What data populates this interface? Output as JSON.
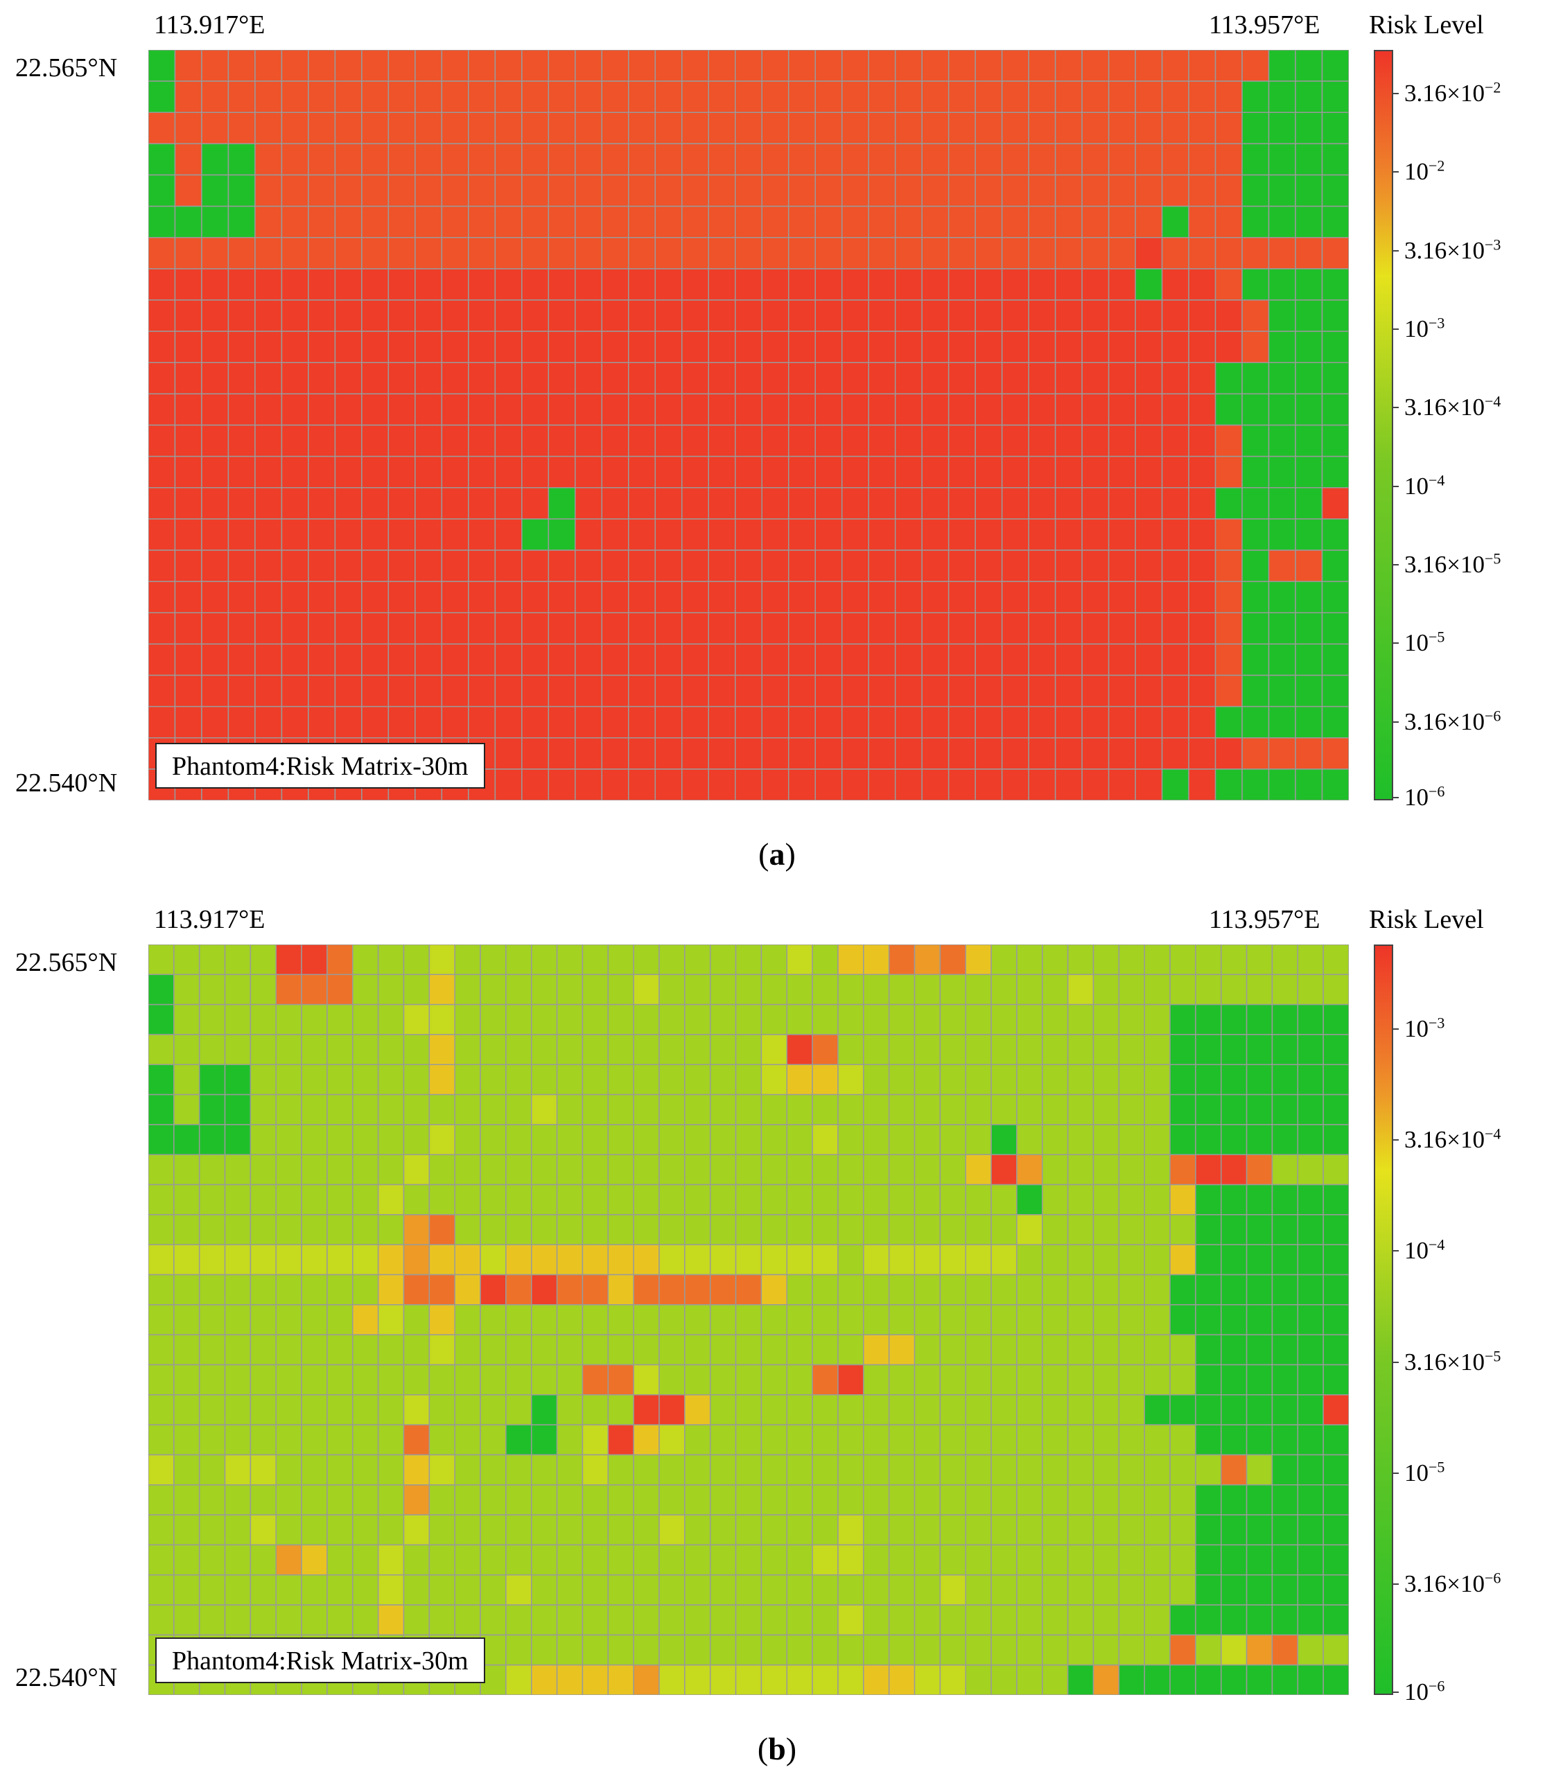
{
  "chart_data": [
    {
      "type": "heatmap",
      "panel": "a",
      "caption": "(a)",
      "caption_letter": "a",
      "title": "Phantom4:Risk Matrix-30m",
      "x_range_labels": [
        "113.917°E",
        "113.957°E"
      ],
      "y_range_labels": [
        "22.565°N",
        "22.540°N"
      ],
      "colorbar_title": "Risk Level",
      "color_scale": "log",
      "value_range": [
        1e-06,
        0.06
      ],
      "colorbar_ticks": [
        {
          "value": 0.0316,
          "mantissa": "3.16×10",
          "exponent": "−2"
        },
        {
          "value": 0.01,
          "mantissa": "10",
          "exponent": "−2"
        },
        {
          "value": 0.00316,
          "mantissa": "3.16×10",
          "exponent": "−3"
        },
        {
          "value": 0.001,
          "mantissa": "10",
          "exponent": "−3"
        },
        {
          "value": 0.000316,
          "mantissa": "3.16×10",
          "exponent": "−4"
        },
        {
          "value": 0.0001,
          "mantissa": "10",
          "exponent": "−4"
        },
        {
          "value": 3.16e-05,
          "mantissa": "3.16×10",
          "exponent": "−5"
        },
        {
          "value": 1e-05,
          "mantissa": "10",
          "exponent": "−5"
        },
        {
          "value": 3.16e-06,
          "mantissa": "3.16×10",
          "exponent": "−6"
        },
        {
          "value": 1e-06,
          "mantissa": "10",
          "exponent": "−6"
        }
      ],
      "colors": {
        "low": "#1fbf2a",
        "mid_low": "#7ac824",
        "mid": "#e6e21c",
        "mid_high": "#ee8a2a",
        "high": "#ee3528",
        "grid": "#9a9a9a"
      },
      "value_legend": {
        "A": 0.05,
        "B": 0.03,
        "C": 0.012,
        "D": 1e-06
      },
      "rows": [
        "DBBBBBBBBBBBBBBBBBBBBBBBBBBBBBBBBBBBBBBBBBDDD",
        "DBBBBBBBBBBBBBBBBBBBBBBBBBBBBBBBBBBBBBBBBDDDD",
        "BBBBBBBBBBBBBBBBBBBBBBBBBBBBBBBBBBBBBBBBBDDDD",
        "DBDDBBBBBBBBBBBBBBBBBBBBBBBBBBBBBBBBBBBBBDDDD",
        "DBDDBBBBBBBBBBBBBBBBBBBBBBBBBBBBBBBBBBBBBDDDD",
        "DDDDBBBBBBBBBBBBBBBBBBBBBBBBBBBBBBBBBBDBBDDDD",
        "BBBBBBBBBBBBBBBBBBBBBBBBBBBBBBBBBBBBBABBBBBBB",
        "AAAAAAAAAAAAAAAAAAAAAAAAAAAAAAAAAAAAADAABDDDD",
        "AAAAAAAAAAAAAAAAAAAAAAAAAAAAAAAAAAAAAAAAABDDD",
        "AAAAAAAAAAAAAAAAAAAAAAAAAAAAAAAAAAAAAAAAABDDD",
        "AAAAAAAAAAAAAAAAAAAAAAAAAAAAAAAAAAAAAAAADDDDD",
        "AAAAAAAAAAAAAAAAAAAAAAAAAAAAAAAAAAAAAAAADDDDD",
        "AAAAAAAAAAAAAAAAAAAAAAAAAAAAAAAAAAAAAAAABDDDD",
        "AAAAAAAAAAAAAAAAAAAAAAAAAAAAAAAAAAAAAAAABDDDD",
        "AAAAAAAAAAAAAAADAAAAAAAAAAAAAAAAAAAAAAAADDDDA",
        "AAAAAAAAAAAAAADDAAAAAAAAAAAAAAAAAAAAAAAABDDDD",
        "AAAAAAAAAAAAAAAAAAAAAAAAAAAAAAAAAAAAAAAABDBBD",
        "AAAAAAAAAAAAAAAAAAAAAAAAAAAAAAAAAAAAAAAABDDDD",
        "AAAAAAAAAAAAAAAAAAAAAAAAAAAAAAAAAAAAAAAABDDDD",
        "AAAAAAAAAAAAAAAAAAAAAAAAAAAAAAAAAAAAAAAABDDDD",
        "AAAAAAAAAAAAAAAAAAAAAAAAAAAAAAAAAAAAAAAABDDDD",
        "AAAAAAAAAAAAAAAAAAAAAAAAAAAAAAAAAAAAAAAADDDDD",
        "AAAAAAAAAAAAAAAAAAAAAAAAAAAAAAAAAAAAAAAAABBBB",
        "AAAAAAAAAAAAAAAAAAAAAAAAAAAAAAAAAAAAAADADDDDD"
      ]
    },
    {
      "type": "heatmap",
      "panel": "b",
      "caption": "(b)",
      "caption_letter": "b",
      "title": "Phantom4:Risk Matrix-30m",
      "x_range_labels": [
        "113.917°E",
        "113.957°E"
      ],
      "y_range_labels": [
        "22.565°N",
        "22.540°N"
      ],
      "colorbar_title": "Risk Level",
      "color_scale": "log",
      "value_range": [
        1e-06,
        0.0024
      ],
      "colorbar_ticks": [
        {
          "value": 0.001,
          "mantissa": "10",
          "exponent": "−3"
        },
        {
          "value": 0.000316,
          "mantissa": "3.16×10",
          "exponent": "−4"
        },
        {
          "value": 0.0001,
          "mantissa": "10",
          "exponent": "−4"
        },
        {
          "value": 3.16e-05,
          "mantissa": "3.16×10",
          "exponent": "−5"
        },
        {
          "value": 1e-05,
          "mantissa": "10",
          "exponent": "−5"
        },
        {
          "value": 3.16e-06,
          "mantissa": "3.16×10",
          "exponent": "−6"
        },
        {
          "value": 1e-06,
          "mantissa": "10",
          "exponent": "−6"
        }
      ],
      "colors": {
        "low": "#1fbf2a",
        "mid_low": "#7ac824",
        "mid": "#e6e21c",
        "mid_high": "#ee8a2a",
        "high": "#ee3528",
        "grid": "#9a9a9a"
      },
      "value_legend": {
        "G": 7e-05,
        "D": 1e-06,
        "L": 0.00013,
        "Y": 0.00032,
        "K": 0.0005,
        "O": 0.0009,
        "R": 0.002
      },
      "rows": [
        "GGGGGRROGGGLGGGGGGGGGGGGGLGYYOKOYGGGGGGGGGGGGGG",
        "DGGGGOOOGGGYGGGGGGGLGGGGGGGGGGGGGGGGLGGGGGGGGGG",
        "DGGGGGGGGGLLGGGGGGGGGGGGGGGGGGGGGGGGGGGGDDDDDDD",
        "GGGGGGGGGGGYGGGGGGGGGGGGLROGGGGGGGGGGGGGDDDDDDD",
        "DGDDGGGGGGGYGGGGGGGGGGGGLYYLGGGGGGGGGGGGDDDDDDD",
        "DGDDGGGGGGGGGGGLGGGGGGGGGGGGGGGGGGGGGGGGDDDDDDD",
        "DDDDGGGGGGGLGGGGGGGGGGGGGGLGGGGGGDGGGGGGDDDDDDD",
        "GGGGGGGGGGLGGGGGGGGGGGGGGGGGGGGGYRKGGGGGORROGGG",
        "GGGGGGGGGLGGGGGGGGGGGGGGGGGGGGGGGGDGGGGGYDDDDDD",
        "GGGGGGGGGGKOGGGGGGGGGGGGGGGGGGGGGGLGGGGGGDDDDDD",
        "LLLLLLLLLYKYYLYYYYYYLLLLLLLGLLLLLLGGGGGGYDDDDDD",
        "GGGGGGGGGYOOYROROOYOOOOOYGGGGGGGGGGGGGGGDDDDDDD",
        "GGGGGGGGYLGYGGGGGGGGGGGGGGGGGGGGGGGGGGGGDDDDDDD",
        "GGGGGGGGGGGLGGGGGGGGGGGGGGGGYYGGGGGGGGGGGDDDDDD",
        "GGGGGGGGGGGGGGGGGOOLGGGGGGORGGGGGGGGGGGGGDDDDDD",
        "GGGGGGGGGGLGGGGDGGGRRYGGGGGGGGGGGGGGGGGDDDDDDDR",
        "GGGGGGGGGGOGGGDDGLRYLGGGGGGGGGGGGGGGGGGGGDDDDDD",
        "LGGLLGGGGGYLGGGGGLGGGGGGGGGGGGGGGGGGGGGGGGOGDDD",
        "GGGGGGGGGGKGGGGGGGGGGGGGGGGGGGGGGGGGGGGGGDDDDDD",
        "GGGGLGGGGGLGGGGGGGGGLGGGGGGLGGGGGGGGGGGGGDDDDDD",
        "GGGGGKYGGLGGGGGGGGGGGGGGGGLLGGGGGGGGGGGGGDDDDDD",
        "GGGGGGGGGLGGGGLGGGGGGGGGGGGGGGGLGGGGGGGGGDDDDDD",
        "GGGGGGGGGYGGGGGGGGGGGGGGGGGLGGGGGGGGGGGGDDDDDDD",
        "GGGGGGGGGGGGGGGGGGGGGGGGGGGGGGGGGGGGGGGGOGLKOGG",
        "GGGGGGGGGGGGGGLYYYYKLLLLLLLLYYLLGGGGDKDDDDDDDDD"
      ]
    }
  ]
}
